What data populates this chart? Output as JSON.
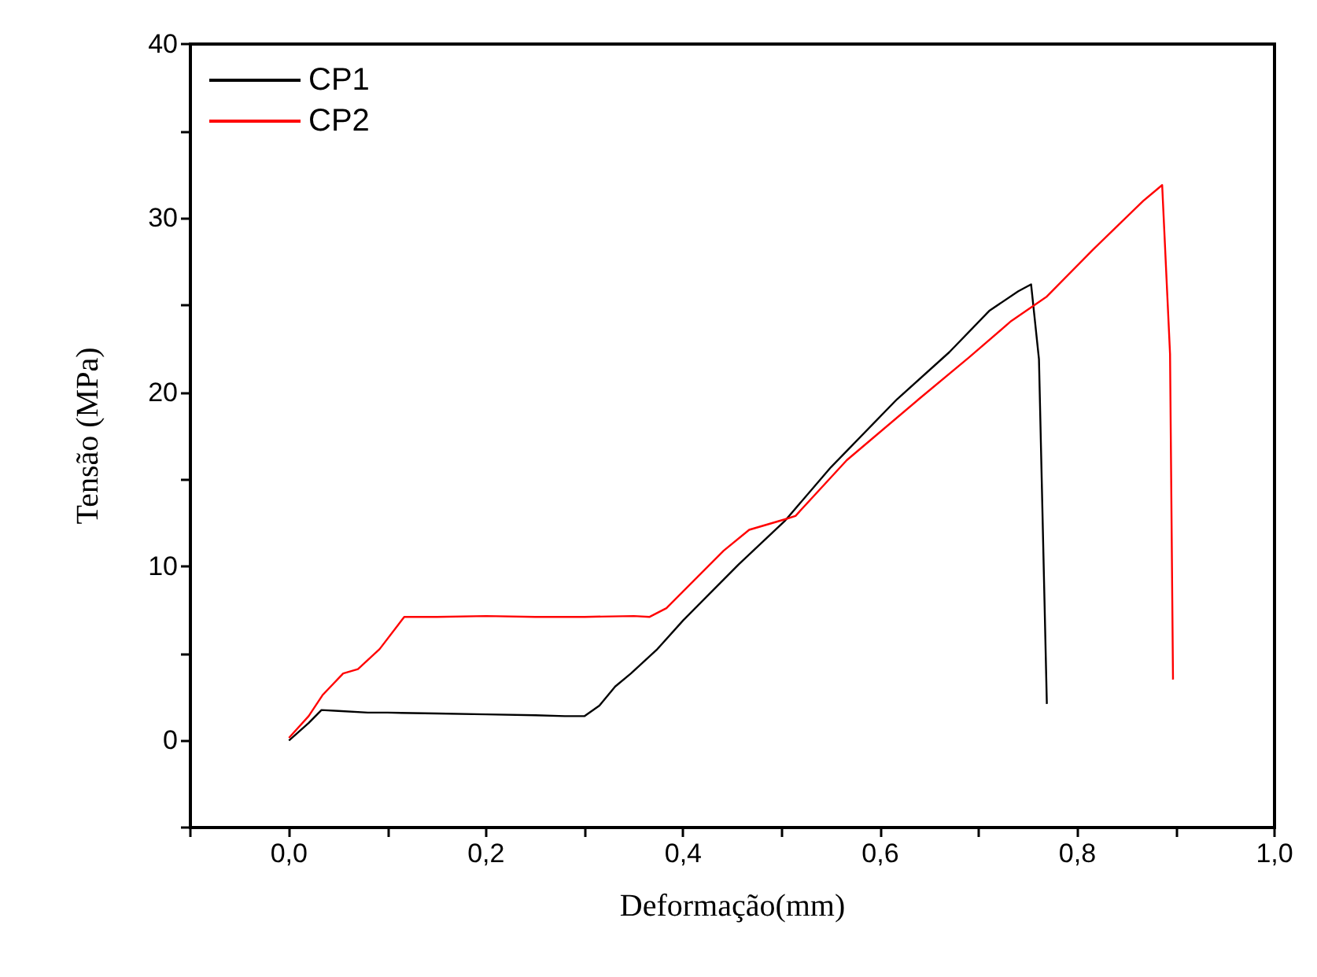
{
  "chart_data": {
    "type": "line",
    "xlabel": "Deformação(mm)",
    "ylabel": "Tensão (MPa)",
    "legend": "top left",
    "grid": false,
    "marker": "none",
    "line_style": "solid",
    "xlim": [
      -0.1,
      1.0
    ],
    "ylim": [
      -5,
      40
    ],
    "xticks": [
      {
        "value": -0.1,
        "label": null
      },
      {
        "value": 0,
        "label": "0,0"
      },
      {
        "value": 0.1,
        "label": null
      },
      {
        "value": 0.2,
        "label": "0,2"
      },
      {
        "value": 0.3,
        "label": null
      },
      {
        "value": 0.4,
        "label": "0,4"
      },
      {
        "value": 0.5,
        "label": null
      },
      {
        "value": 0.6,
        "label": "0,6"
      },
      {
        "value": 0.7,
        "label": null
      },
      {
        "value": 0.8,
        "label": "0,8"
      },
      {
        "value": 0.9,
        "label": null
      },
      {
        "value": 1.0,
        "label": "1,0"
      }
    ],
    "yticks": [
      {
        "value": -5,
        "label": null
      },
      0,
      {
        "value": 5,
        "label": null
      },
      10,
      {
        "value": 15,
        "label": null
      },
      20,
      {
        "value": 25,
        "label": null
      },
      30,
      {
        "value": 35,
        "label": null
      },
      40
    ],
    "series": [
      {
        "name": "CP1",
        "color": "#000000",
        "x": [
          0,
          0.02,
          0.033,
          0.05,
          0.08,
          0.1,
          0.15,
          0.2,
          0.25,
          0.28,
          0.3,
          0.315,
          0.331,
          0.347,
          0.373,
          0.4,
          0.456,
          0.503,
          0.55,
          0.617,
          0.67,
          0.711,
          0.74,
          0.753,
          0.761,
          0.769
        ],
        "values": [
          0,
          1.0,
          1.75,
          1.7,
          1.6,
          1.6,
          1.55,
          1.5,
          1.45,
          1.4,
          1.4,
          2.0,
          3.1,
          3.85,
          5.2,
          6.9,
          10.1,
          12.6,
          15.7,
          19.6,
          22.3,
          24.7,
          25.8,
          26.2,
          21.9,
          2.1
        ]
      },
      {
        "name": "CP2",
        "color": "#ff0000",
        "x": [
          0,
          0.02,
          0.034,
          0.055,
          0.07,
          0.092,
          0.117,
          0.15,
          0.2,
          0.25,
          0.3,
          0.35,
          0.366,
          0.383,
          0.441,
          0.467,
          0.503,
          0.514,
          0.566,
          0.639,
          0.69,
          0.733,
          0.769,
          0.816,
          0.867,
          0.886,
          0.894,
          0.897
        ],
        "values": [
          0.15,
          1.4,
          2.6,
          3.85,
          4.1,
          5.25,
          7.1,
          7.1,
          7.15,
          7.1,
          7.1,
          7.15,
          7.1,
          7.6,
          10.9,
          12.1,
          12.7,
          12.9,
          16.1,
          19.6,
          22.0,
          24.1,
          25.5,
          28.2,
          31.0,
          31.9,
          22.2,
          3.5
        ]
      }
    ]
  }
}
